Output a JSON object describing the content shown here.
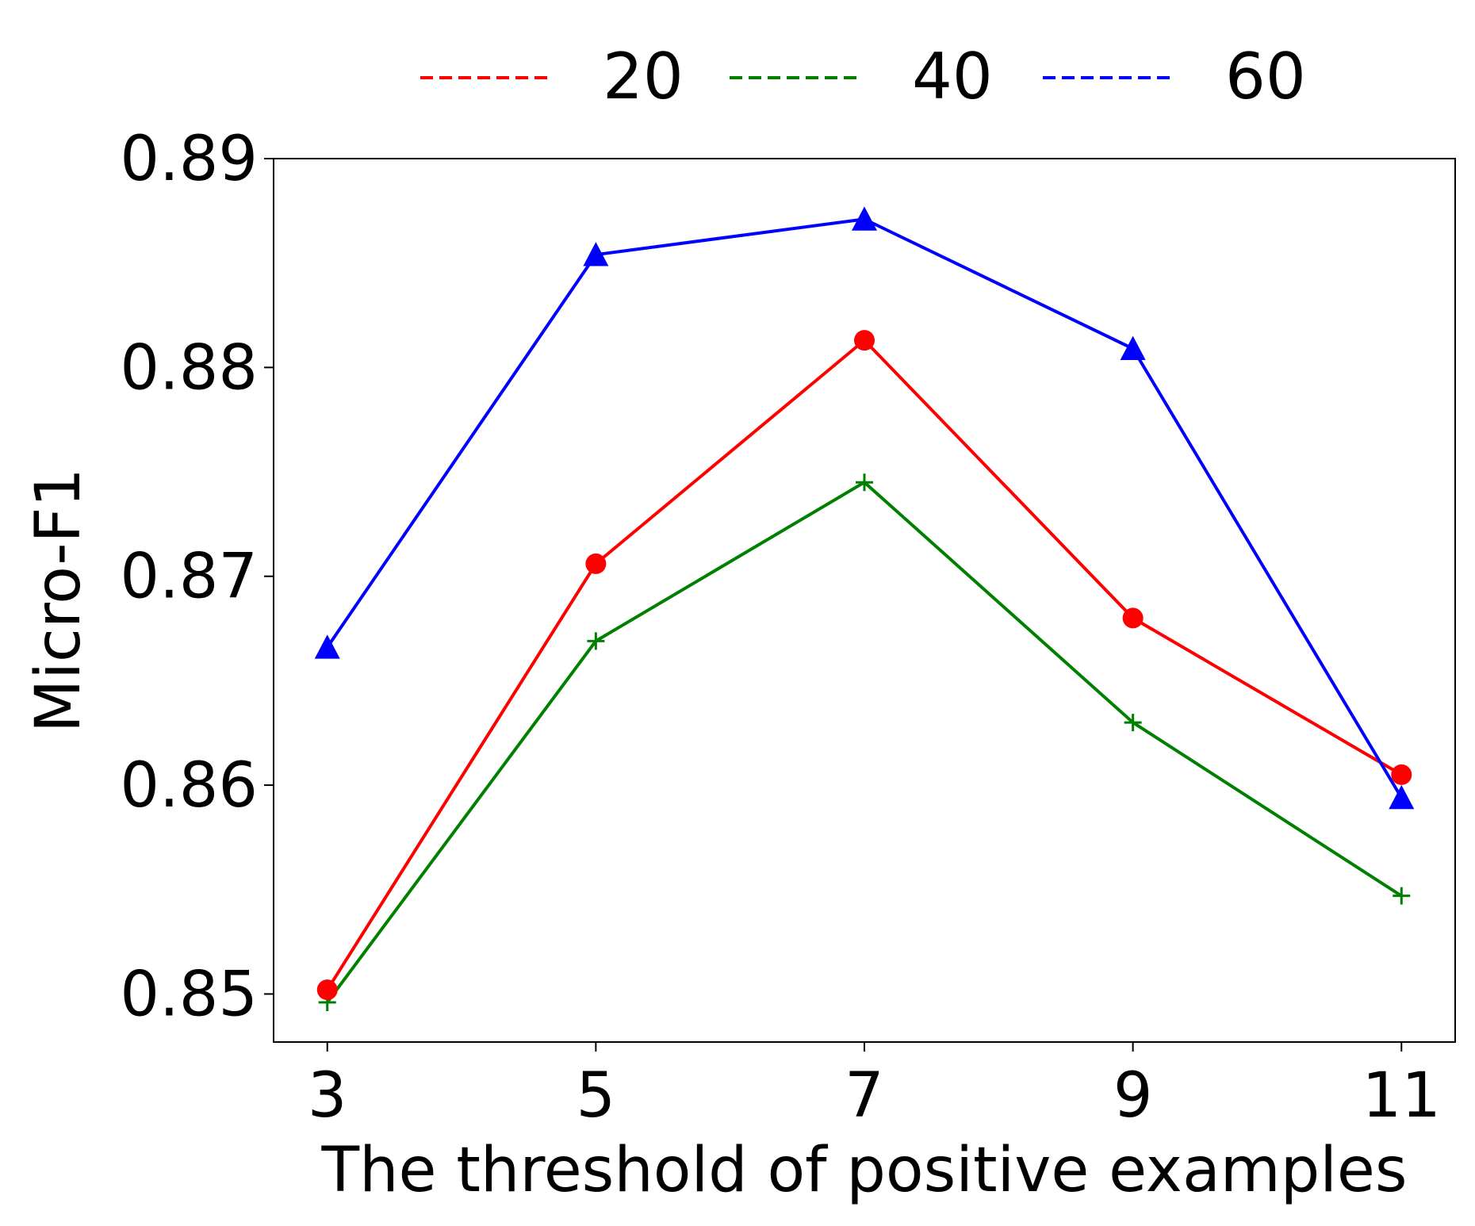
{
  "chart_data": {
    "type": "line",
    "title": "",
    "xlabel": "The threshold of positive examples",
    "ylabel": "Micro-F1",
    "x": [
      3,
      5,
      7,
      9,
      11
    ],
    "x_tick_labels": [
      "3",
      "5",
      "7",
      "9",
      "11"
    ],
    "y_ticks": [
      0.85,
      0.86,
      0.87,
      0.88,
      0.89
    ],
    "y_tick_labels": [
      "0.85",
      "0.86",
      "0.87",
      "0.88",
      "0.89"
    ],
    "xlim": [
      2.6,
      11.4
    ],
    "ylim": [
      0.8477,
      0.89
    ],
    "grid": false,
    "legend_position": "top-center",
    "series": [
      {
        "name": "20",
        "color": "#ff0000",
        "marker": "circle",
        "values": [
          0.8502,
          0.8706,
          0.8813,
          0.868,
          0.8605
        ]
      },
      {
        "name": "40",
        "color": "#008000",
        "marker": "plus",
        "values": [
          0.8496,
          0.8669,
          0.8745,
          0.863,
          0.8547
        ]
      },
      {
        "name": "60",
        "color": "#0000ff",
        "marker": "triangle",
        "values": [
          0.8666,
          0.8854,
          0.8871,
          0.8809,
          0.8594
        ]
      }
    ]
  }
}
